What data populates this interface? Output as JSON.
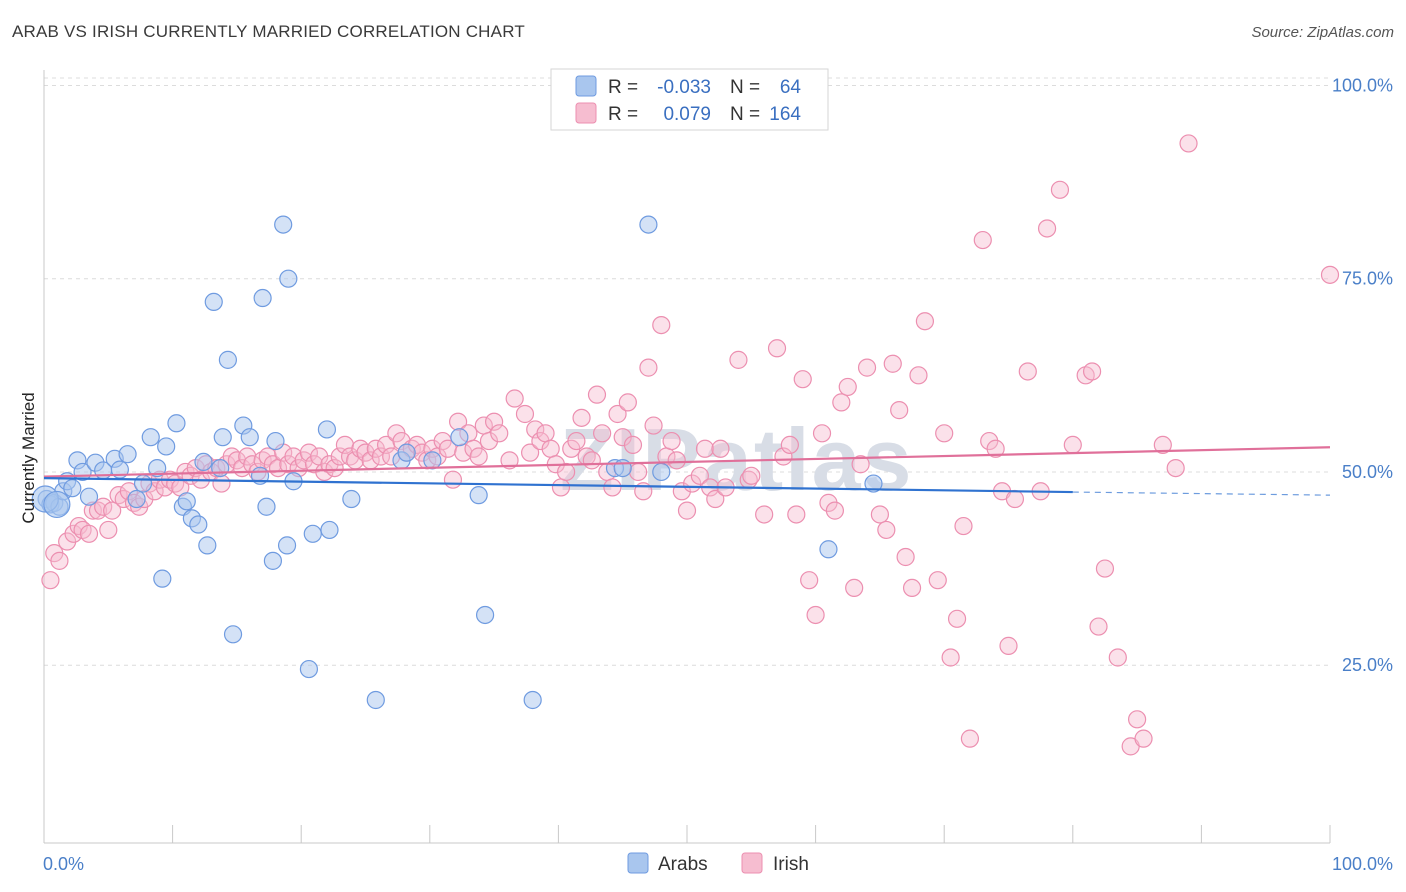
{
  "title": "ARAB VS IRISH CURRENTLY MARRIED CORRELATION CHART",
  "source": "Source: ZipAtlas.com",
  "watermark": "ZIPatlas",
  "legend": {
    "r_label": "R =",
    "n_label": "N =",
    "rows": [
      {
        "r": "-0.033",
        "n": "64"
      },
      {
        "r": "0.079",
        "n": "164"
      }
    ]
  },
  "bottom_legend": [
    "Arabs",
    "Irish"
  ],
  "colors": {
    "arabs_fill": "#a9c6ee",
    "arabs_stroke": "#6f9be0",
    "arabs_line": "#2f72d0",
    "irish_fill": "#f6bdd0",
    "irish_stroke": "#ec8fb0",
    "irish_line": "#e0709a",
    "tick": "#4a7fc8",
    "grid": "#dcdcdc"
  },
  "chart_data": {
    "type": "scatter",
    "xlabel": "",
    "ylabel": "Currently Married",
    "xlim": [
      0,
      100
    ],
    "ylim": [
      2,
      102
    ],
    "x_tick_labels": [
      "0.0%",
      "100.0%"
    ],
    "y_ticks": [
      25,
      50,
      75,
      100
    ],
    "y_tick_labels": [
      "25.0%",
      "50.0%",
      "75.0%",
      "100.0%"
    ],
    "grid": true,
    "legend_position": "top-center",
    "series": [
      {
        "name": "Arabs",
        "trend": {
          "x": [
            0,
            80
          ],
          "y": [
            49.2,
            47.4
          ],
          "dash_to": [
            100,
            47.0
          ]
        },
        "points": [
          [
            0.2,
            46.5
          ],
          [
            0.5,
            45.8
          ],
          [
            0.8,
            46.0
          ],
          [
            1.2,
            45.5
          ],
          [
            1.5,
            47.5
          ],
          [
            1.8,
            48.8
          ],
          [
            2.2,
            47.9
          ],
          [
            2.6,
            51.5
          ],
          [
            3.0,
            50.0
          ],
          [
            3.5,
            46.8
          ],
          [
            4.0,
            51.2
          ],
          [
            4.6,
            50.2
          ],
          [
            5.5,
            51.7
          ],
          [
            5.9,
            50.3
          ],
          [
            6.5,
            52.3
          ],
          [
            7.2,
            46.5
          ],
          [
            7.7,
            48.5
          ],
          [
            8.3,
            54.5
          ],
          [
            8.8,
            50.5
          ],
          [
            9.2,
            36.2
          ],
          [
            9.5,
            53.3
          ],
          [
            10.3,
            56.3
          ],
          [
            10.8,
            45.5
          ],
          [
            11.1,
            46.2
          ],
          [
            11.5,
            44.0
          ],
          [
            12.0,
            43.2
          ],
          [
            12.4,
            51.3
          ],
          [
            12.7,
            40.5
          ],
          [
            13.2,
            72.0
          ],
          [
            13.7,
            50.5
          ],
          [
            13.9,
            54.5
          ],
          [
            14.3,
            64.5
          ],
          [
            14.7,
            29.0
          ],
          [
            15.5,
            56.0
          ],
          [
            16.0,
            54.5
          ],
          [
            16.8,
            49.5
          ],
          [
            17.0,
            72.5
          ],
          [
            17.3,
            45.5
          ],
          [
            17.8,
            38.5
          ],
          [
            18.0,
            54.0
          ],
          [
            18.6,
            82.0
          ],
          [
            18.9,
            40.5
          ],
          [
            19.0,
            75.0
          ],
          [
            19.4,
            48.8
          ],
          [
            20.6,
            24.5
          ],
          [
            20.9,
            42.0
          ],
          [
            22.0,
            55.5
          ],
          [
            22.2,
            42.5
          ],
          [
            23.9,
            46.5
          ],
          [
            25.8,
            20.5
          ],
          [
            27.8,
            51.5
          ],
          [
            28.2,
            52.5
          ],
          [
            30.2,
            51.5
          ],
          [
            32.3,
            54.5
          ],
          [
            33.8,
            47.0
          ],
          [
            34.3,
            31.5
          ],
          [
            38.0,
            20.5
          ],
          [
            44.4,
            50.5
          ],
          [
            45.0,
            50.5
          ],
          [
            47.0,
            82.0
          ],
          [
            48.0,
            50.0
          ],
          [
            61.0,
            40.0
          ],
          [
            64.5,
            48.5
          ]
        ],
        "big_points": [
          [
            0.1,
            46.5
          ],
          [
            1.0,
            45.8
          ]
        ]
      },
      {
        "name": "Irish",
        "trend": {
          "x": [
            0,
            100
          ],
          "y": [
            49.4,
            53.2
          ]
        },
        "points": [
          [
            0.5,
            36.0
          ],
          [
            0.8,
            39.5
          ],
          [
            1.2,
            38.5
          ],
          [
            1.8,
            41.0
          ],
          [
            2.3,
            42.0
          ],
          [
            2.7,
            43.0
          ],
          [
            3.0,
            42.5
          ],
          [
            3.5,
            42.0
          ],
          [
            3.8,
            45.0
          ],
          [
            4.2,
            45.0
          ],
          [
            4.6,
            45.5
          ],
          [
            5.0,
            42.5
          ],
          [
            5.3,
            45.0
          ],
          [
            5.8,
            47.0
          ],
          [
            6.2,
            46.5
          ],
          [
            6.6,
            47.5
          ],
          [
            7.0,
            46.0
          ],
          [
            7.4,
            45.5
          ],
          [
            7.8,
            46.5
          ],
          [
            8.2,
            48.5
          ],
          [
            8.6,
            47.5
          ],
          [
            9.0,
            49.0
          ],
          [
            9.4,
            48.0
          ],
          [
            9.8,
            49.0
          ],
          [
            10.2,
            48.5
          ],
          [
            10.6,
            48.0
          ],
          [
            11.0,
            50.0
          ],
          [
            11.4,
            49.5
          ],
          [
            11.8,
            50.5
          ],
          [
            12.2,
            49.0
          ],
          [
            12.6,
            51.0
          ],
          [
            13.0,
            50.0
          ],
          [
            13.4,
            50.5
          ],
          [
            13.8,
            48.5
          ],
          [
            14.2,
            51.0
          ],
          [
            14.6,
            52.0
          ],
          [
            15.0,
            51.5
          ],
          [
            15.4,
            50.5
          ],
          [
            15.8,
            52.0
          ],
          [
            16.2,
            51.0
          ],
          [
            16.6,
            50.0
          ],
          [
            17.0,
            51.5
          ],
          [
            17.4,
            52.0
          ],
          [
            17.8,
            51.0
          ],
          [
            18.2,
            50.5
          ],
          [
            18.6,
            52.5
          ],
          [
            19.0,
            51.0
          ],
          [
            19.4,
            52.0
          ],
          [
            19.8,
            50.5
          ],
          [
            20.2,
            51.5
          ],
          [
            20.6,
            52.5
          ],
          [
            21.0,
            51.0
          ],
          [
            21.4,
            52.0
          ],
          [
            21.8,
            50.0
          ],
          [
            22.2,
            51.0
          ],
          [
            22.6,
            50.5
          ],
          [
            23.0,
            52.0
          ],
          [
            23.4,
            53.5
          ],
          [
            23.8,
            52.0
          ],
          [
            24.2,
            51.5
          ],
          [
            24.6,
            53.0
          ],
          [
            25.0,
            52.5
          ],
          [
            25.4,
            51.5
          ],
          [
            25.8,
            53.0
          ],
          [
            26.2,
            52.0
          ],
          [
            26.6,
            53.5
          ],
          [
            27.0,
            52.0
          ],
          [
            27.4,
            55.0
          ],
          [
            27.8,
            54.0
          ],
          [
            28.2,
            52.5
          ],
          [
            28.6,
            53.0
          ],
          [
            29.0,
            53.5
          ],
          [
            29.4,
            52.5
          ],
          [
            29.8,
            51.5
          ],
          [
            30.2,
            53.0
          ],
          [
            30.6,
            52.0
          ],
          [
            31.0,
            54.0
          ],
          [
            31.4,
            53.0
          ],
          [
            31.8,
            49.0
          ],
          [
            32.2,
            56.5
          ],
          [
            32.6,
            52.5
          ],
          [
            33.0,
            55.0
          ],
          [
            33.4,
            53.0
          ],
          [
            33.8,
            52.0
          ],
          [
            34.2,
            56.0
          ],
          [
            34.6,
            54.0
          ],
          [
            35.0,
            56.5
          ],
          [
            35.4,
            55.0
          ],
          [
            36.2,
            51.5
          ],
          [
            36.6,
            59.5
          ],
          [
            37.4,
            57.5
          ],
          [
            37.8,
            52.5
          ],
          [
            38.2,
            55.5
          ],
          [
            38.6,
            54.0
          ],
          [
            39.0,
            55.0
          ],
          [
            39.4,
            53.0
          ],
          [
            39.8,
            51.0
          ],
          [
            40.2,
            48.0
          ],
          [
            40.6,
            50.0
          ],
          [
            41.0,
            53.0
          ],
          [
            41.4,
            54.0
          ],
          [
            41.8,
            57.0
          ],
          [
            42.2,
            52.0
          ],
          [
            42.6,
            51.5
          ],
          [
            43.0,
            60.0
          ],
          [
            43.4,
            55.0
          ],
          [
            43.8,
            50.0
          ],
          [
            44.2,
            48.0
          ],
          [
            44.6,
            57.5
          ],
          [
            45.0,
            54.5
          ],
          [
            45.4,
            59.0
          ],
          [
            45.8,
            53.5
          ],
          [
            46.2,
            50.0
          ],
          [
            46.6,
            47.5
          ],
          [
            47.0,
            63.5
          ],
          [
            47.4,
            56.0
          ],
          [
            48.0,
            69.0
          ],
          [
            48.4,
            52.0
          ],
          [
            48.8,
            54.0
          ],
          [
            49.2,
            51.5
          ],
          [
            49.6,
            47.5
          ],
          [
            50.0,
            45.0
          ],
          [
            50.4,
            48.5
          ],
          [
            51.0,
            49.5
          ],
          [
            51.4,
            53.0
          ],
          [
            51.8,
            48.0
          ],
          [
            52.2,
            46.5
          ],
          [
            52.6,
            53.0
          ],
          [
            53.0,
            48.0
          ],
          [
            54.0,
            64.5
          ],
          [
            54.8,
            49.0
          ],
          [
            55.0,
            49.5
          ],
          [
            56.0,
            44.5
          ],
          [
            57.0,
            66.0
          ],
          [
            57.5,
            52.0
          ],
          [
            58.0,
            53.5
          ],
          [
            58.5,
            44.5
          ],
          [
            59.0,
            62.0
          ],
          [
            59.5,
            36.0
          ],
          [
            60.0,
            31.5
          ],
          [
            60.5,
            55.0
          ],
          [
            61.0,
            46.0
          ],
          [
            61.5,
            45.0
          ],
          [
            62.0,
            59.0
          ],
          [
            62.5,
            61.0
          ],
          [
            63.0,
            35.0
          ],
          [
            63.5,
            51.0
          ],
          [
            64.0,
            63.5
          ],
          [
            65.0,
            44.5
          ],
          [
            65.5,
            42.5
          ],
          [
            66.0,
            64.0
          ],
          [
            66.5,
            58.0
          ],
          [
            67.0,
            39.0
          ],
          [
            67.5,
            35.0
          ],
          [
            68.0,
            62.5
          ],
          [
            68.5,
            69.5
          ],
          [
            69.5,
            36.0
          ],
          [
            70.0,
            55.0
          ],
          [
            70.5,
            26.0
          ],
          [
            71.0,
            31.0
          ],
          [
            71.5,
            43.0
          ],
          [
            72.0,
            15.5
          ],
          [
            73.0,
            80.0
          ],
          [
            73.5,
            54.0
          ],
          [
            74.0,
            53.0
          ],
          [
            74.5,
            47.5
          ],
          [
            75.0,
            27.5
          ],
          [
            75.5,
            46.5
          ],
          [
            76.5,
            63.0
          ],
          [
            77.5,
            47.5
          ],
          [
            78.0,
            81.5
          ],
          [
            79.0,
            86.5
          ],
          [
            80.0,
            53.5
          ],
          [
            81.0,
            62.5
          ],
          [
            81.5,
            63.0
          ],
          [
            82.0,
            30.0
          ],
          [
            82.5,
            37.5
          ],
          [
            83.5,
            26.0
          ],
          [
            84.5,
            14.5
          ],
          [
            85.0,
            18.0
          ],
          [
            85.5,
            15.5
          ],
          [
            87.0,
            53.5
          ],
          [
            88.0,
            50.5
          ],
          [
            89.0,
            92.5
          ],
          [
            100.0,
            75.5
          ]
        ]
      }
    ]
  }
}
